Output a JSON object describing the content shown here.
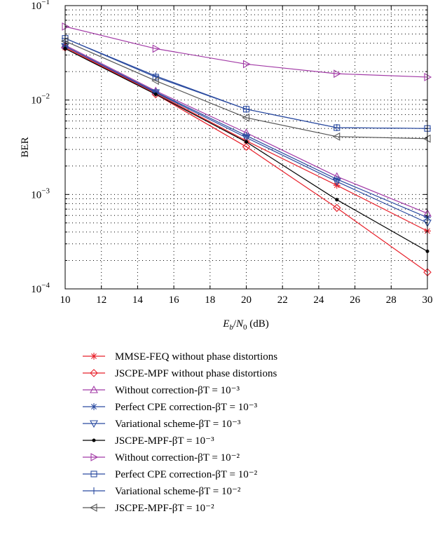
{
  "chart_data": {
    "type": "line",
    "xlabel": "E_b/N_0 (dB)",
    "ylabel": "BER",
    "xlim": [
      10,
      30
    ],
    "ylim": [
      0.0001,
      0.1
    ],
    "yscale": "log",
    "grid": true,
    "x_ticks": [
      "10",
      "12",
      "14",
      "16",
      "18",
      "20",
      "22",
      "24",
      "26",
      "28",
      "30"
    ],
    "y_ticks": [
      {
        "base": "10",
        "exp": "−1"
      },
      {
        "base": "10",
        "exp": "−2"
      },
      {
        "base": "10",
        "exp": "−3"
      },
      {
        "base": "10",
        "exp": "−4"
      }
    ],
    "legend_placement": "below",
    "series": [
      {
        "name": "MMSE-FEQ without phase distortions",
        "color": "#e8212b",
        "marker": "asterisk",
        "x": [
          10,
          15,
          20,
          25,
          30
        ],
        "y": [
          0.036,
          0.0118,
          0.0037,
          0.00125,
          0.00041
        ]
      },
      {
        "name": "JSCPE-MPF without phase distortions",
        "color": "#e8212b",
        "marker": "diamond",
        "x": [
          10,
          15,
          20,
          25,
          30
        ],
        "y": [
          0.036,
          0.0115,
          0.0032,
          0.00072,
          0.00015
        ]
      },
      {
        "name": "Without correction-βT = 10⁻³",
        "color": "#a23aa6",
        "marker": "triangle-up",
        "x": [
          10,
          15,
          20,
          25,
          30
        ],
        "y": [
          0.038,
          0.0125,
          0.0045,
          0.00155,
          0.00063
        ]
      },
      {
        "name": "Perfect CPE correction-βT = 10⁻³",
        "color": "#2b4ba0",
        "marker": "asterisk",
        "x": [
          10,
          15,
          20,
          25,
          30
        ],
        "y": [
          0.037,
          0.0122,
          0.0042,
          0.00145,
          0.00057
        ]
      },
      {
        "name": "Variational scheme-βT = 10⁻³",
        "color": "#2b4ba0",
        "marker": "triangle-down",
        "x": [
          10,
          15,
          20,
          25,
          30
        ],
        "y": [
          0.037,
          0.012,
          0.004,
          0.00137,
          0.0005
        ]
      },
      {
        "name": "JSCPE-MPF-βT = 10⁻³",
        "color": "#000000",
        "marker": "dot",
        "x": [
          10,
          15,
          20,
          25,
          30
        ],
        "y": [
          0.035,
          0.0115,
          0.0036,
          0.00088,
          0.00025
        ]
      },
      {
        "name": "Without correction-βT = 10⁻²",
        "color": "#a23aa6",
        "marker": "triangle-right",
        "x": [
          10,
          15,
          20,
          25,
          30
        ],
        "y": [
          0.06,
          0.035,
          0.024,
          0.019,
          0.0175
        ]
      },
      {
        "name": "Perfect CPE correction-βT = 10⁻²",
        "color": "#2b4ba0",
        "marker": "square",
        "x": [
          10,
          15,
          20,
          25,
          30
        ],
        "y": [
          0.045,
          0.0175,
          0.008,
          0.0051,
          0.005
        ]
      },
      {
        "name": "Variational scheme-βT = 10⁻²",
        "color": "#2b4ba0",
        "marker": "plus",
        "x": [
          10,
          15,
          20,
          25,
          30
        ],
        "y": [
          0.045,
          0.018,
          0.008,
          0.0051,
          0.005
        ]
      },
      {
        "name": "JSCPE-MPF-βT = 10⁻²",
        "color": "#555555",
        "marker": "triangle-left",
        "x": [
          10,
          15,
          20,
          25,
          30
        ],
        "y": [
          0.042,
          0.016,
          0.0065,
          0.0041,
          0.0039
        ]
      }
    ]
  }
}
